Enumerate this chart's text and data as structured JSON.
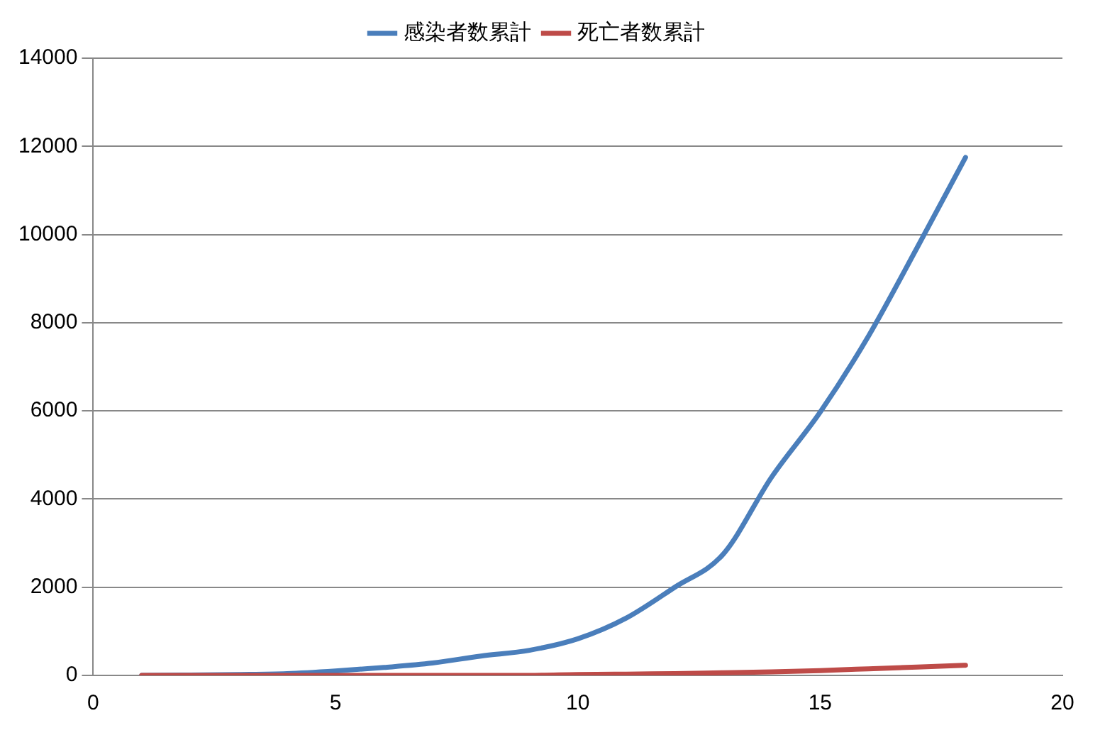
{
  "chart_data": {
    "type": "line",
    "x": [
      1,
      2,
      3,
      4,
      5,
      6,
      7,
      8,
      9,
      10,
      11,
      12,
      13,
      14,
      15,
      16,
      17,
      18
    ],
    "series": [
      {
        "name": "感染者数累計",
        "color": "#4a7ebb",
        "values": [
          0,
          10,
          20,
          40,
          100,
          180,
          280,
          440,
          570,
          830,
          1300,
          2000,
          2750,
          4500,
          5970,
          7700,
          9700,
          11750
        ]
      },
      {
        "name": "死亡者数累計",
        "color": "#be4b48",
        "values": [
          0,
          0,
          0,
          0,
          0,
          0,
          0,
          0,
          0,
          20,
          30,
          40,
          60,
          80,
          110,
          150,
          190,
          230
        ]
      }
    ],
    "xlim": [
      0,
      20
    ],
    "xticks": [
      0,
      5,
      10,
      15,
      20
    ],
    "ylim": [
      0,
      14000
    ],
    "yticks": [
      0,
      2000,
      4000,
      6000,
      8000,
      10000,
      12000,
      14000
    ],
    "grid": "y",
    "legend": "top",
    "marker": "none",
    "line_style": "solid"
  }
}
